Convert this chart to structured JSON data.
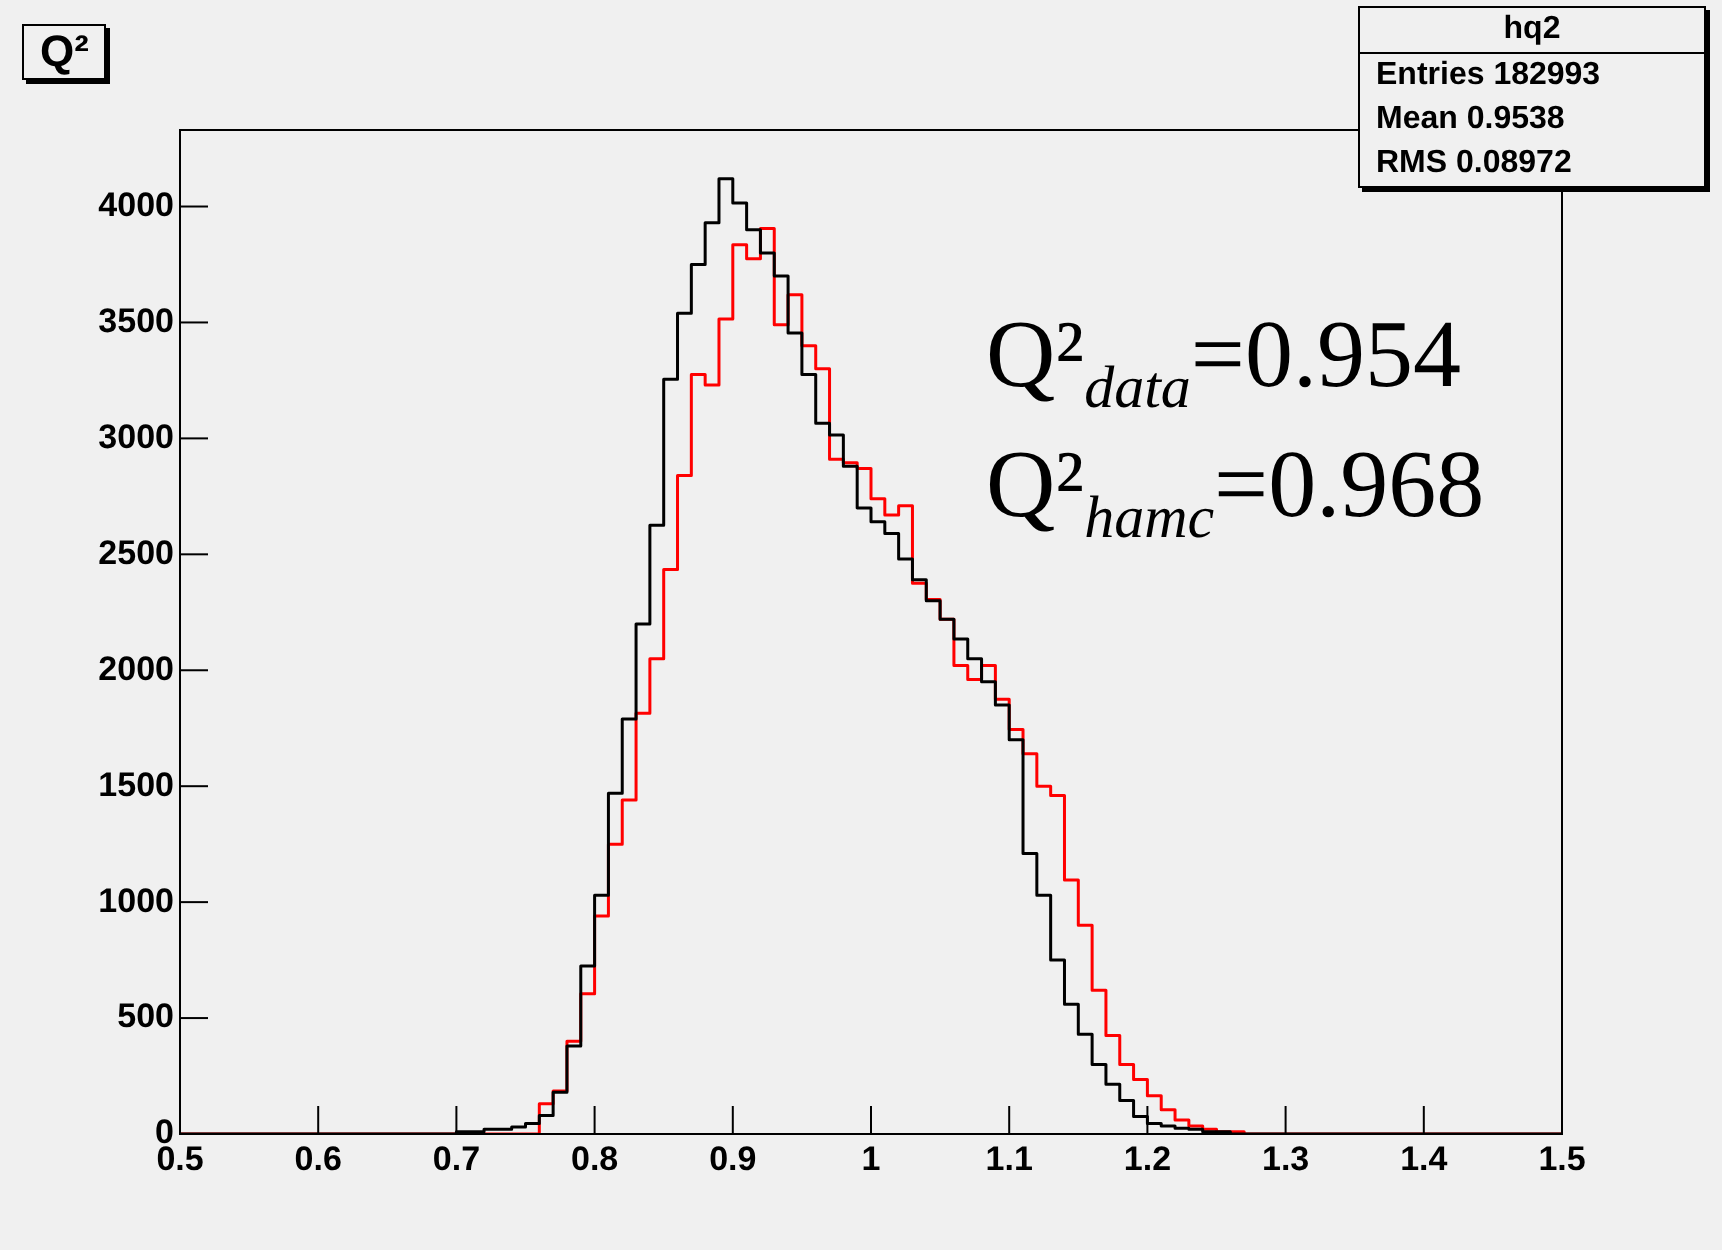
{
  "chart_data": {
    "type": "histogram",
    "title": "Q²",
    "bins": [
      0.5,
      0.51,
      0.52,
      0.53,
      0.54,
      0.55,
      0.56,
      0.57,
      0.58,
      0.59,
      0.6,
      0.61,
      0.62,
      0.63,
      0.64,
      0.65,
      0.66,
      0.67,
      0.68,
      0.69,
      0.7,
      0.71,
      0.72,
      0.73,
      0.74,
      0.75,
      0.76,
      0.77,
      0.78,
      0.79,
      0.8,
      0.81,
      0.82,
      0.83,
      0.84,
      0.85,
      0.86,
      0.87,
      0.88,
      0.89,
      0.9,
      0.91,
      0.92,
      0.93,
      0.94,
      0.95,
      0.96,
      0.97,
      0.98,
      0.99,
      1.0,
      1.01,
      1.02,
      1.03,
      1.04,
      1.05,
      1.06,
      1.07,
      1.08,
      1.09,
      1.1,
      1.11,
      1.12,
      1.13,
      1.14,
      1.15,
      1.16,
      1.17,
      1.18,
      1.19,
      1.2,
      1.21,
      1.22,
      1.23,
      1.24,
      1.25,
      1.26,
      1.27,
      1.28,
      1.29,
      1.3,
      1.31,
      1.32,
      1.33,
      1.34,
      1.35,
      1.36,
      1.37,
      1.38,
      1.39,
      1.4,
      1.41,
      1.42,
      1.43,
      1.44,
      1.45,
      1.46,
      1.47,
      1.48,
      1.49,
      1.5
    ],
    "series": [
      {
        "color": "#000000",
        "values": [
          0,
          0,
          0,
          0,
          0,
          0,
          0,
          0,
          0,
          0,
          0,
          0,
          0,
          0,
          0,
          0,
          0,
          0,
          0,
          0,
          10,
          10,
          20,
          20,
          30,
          45,
          80,
          180,
          380,
          725,
          1030,
          1470,
          1790,
          2200,
          2625,
          3255,
          3540,
          3750,
          3930,
          4120,
          4015,
          3900,
          3800,
          3700,
          3455,
          3275,
          3065,
          3015,
          2880,
          2700,
          2640,
          2590,
          2480,
          2390,
          2300,
          2220,
          2135,
          2050,
          1950,
          1850,
          1700,
          1210,
          1030,
          750,
          560,
          430,
          300,
          215,
          145,
          75,
          45,
          35,
          25,
          20,
          10,
          10,
          0,
          0,
          0,
          0,
          0,
          0,
          0,
          0,
          0,
          0,
          0,
          0,
          0,
          0,
          0,
          0,
          0,
          0,
          0,
          0,
          0,
          0,
          0,
          0
        ]
      },
      {
        "color": "#ff0000",
        "values": [
          0,
          0,
          0,
          0,
          0,
          0,
          0,
          0,
          0,
          0,
          0,
          0,
          0,
          0,
          0,
          0,
          0,
          0,
          0,
          0,
          0,
          0,
          0,
          0,
          0,
          0,
          130,
          185,
          400,
          605,
          940,
          1250,
          1440,
          1815,
          2050,
          2435,
          2840,
          3275,
          3230,
          3515,
          3835,
          3775,
          3905,
          3490,
          3620,
          3400,
          3300,
          2910,
          2895,
          2870,
          2740,
          2670,
          2710,
          2375,
          2305,
          2220,
          2020,
          1960,
          2020,
          1875,
          1745,
          1640,
          1500,
          1460,
          1095,
          900,
          620,
          425,
          300,
          235,
          165,
          105,
          60,
          35,
          20,
          10,
          10,
          0,
          0,
          0,
          0,
          0,
          0,
          0,
          0,
          0,
          0,
          0,
          0,
          0,
          0,
          0,
          0,
          0,
          0,
          0,
          0,
          0,
          0,
          0
        ]
      }
    ],
    "xlim": [
      0.5,
      1.5
    ],
    "xticks": [
      0.5,
      0.6,
      0.7,
      0.8,
      0.9,
      1,
      1.1,
      1.2,
      1.3,
      1.4,
      1.5
    ],
    "ylim": [
      0,
      4330
    ],
    "yticks": [
      0,
      500,
      1000,
      1500,
      2000,
      2500,
      3000,
      3500,
      4000
    ],
    "grid": false,
    "legend": false,
    "annotations": [
      "hq2",
      "Entries 182993",
      "Mean 0.9538",
      "RMS 0.08972",
      "Q²$_{data}$=0.954",
      "Q²$_{hamc}$=0.968"
    ]
  }
}
